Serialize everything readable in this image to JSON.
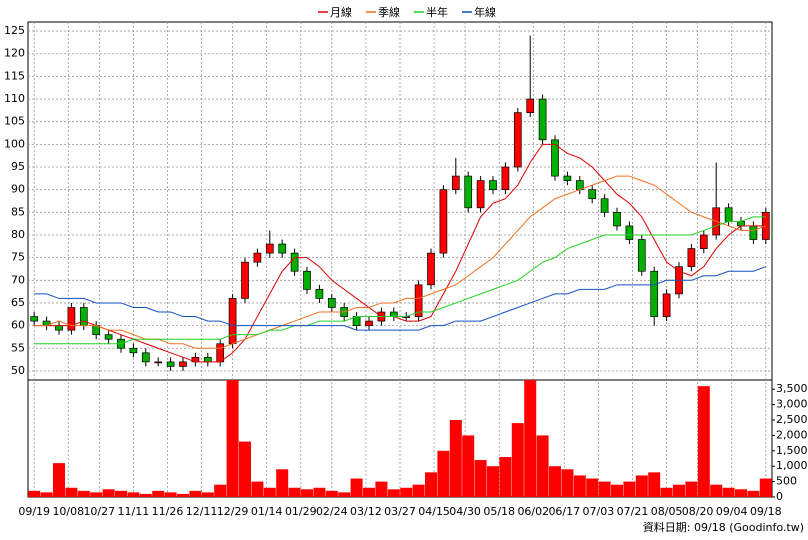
{
  "chart_data": {
    "type": "candlestick",
    "up_color": "#ff0000",
    "down_color": "#00b000",
    "volume_color": "#ff0000",
    "grid": true,
    "x": [
      0,
      4,
      8,
      12,
      16,
      20,
      24,
      28,
      32,
      36,
      40,
      44,
      48,
      52,
      56,
      60,
      64,
      68,
      72,
      76,
      80,
      84,
      88,
      92,
      96,
      100,
      104,
      108,
      112,
      116,
      120,
      124,
      128,
      132,
      136,
      140,
      144,
      148,
      152,
      156,
      160,
      164,
      168,
      172,
      176,
      180,
      184,
      188,
      192,
      196,
      200,
      204,
      208,
      212,
      216,
      220,
      224,
      228,
      232,
      236
    ],
    "open": [
      62,
      61,
      60,
      59,
      64,
      60,
      58,
      57,
      55,
      54,
      52,
      52,
      51,
      52,
      53,
      52,
      56,
      66,
      74,
      76,
      78,
      76,
      72,
      68,
      66,
      64,
      62,
      60,
      61,
      63,
      62,
      62,
      69,
      76,
      90,
      93,
      86,
      92,
      90,
      95,
      107,
      110,
      101,
      93,
      92,
      90,
      88,
      85,
      82,
      79,
      72,
      62,
      67,
      73,
      77,
      80,
      86,
      83,
      82,
      79
    ],
    "high": [
      63,
      62,
      61,
      65,
      65,
      61,
      59,
      58,
      56,
      55,
      53,
      53,
      53,
      54,
      54,
      57,
      67,
      75,
      77,
      81,
      79,
      77,
      73,
      69,
      67,
      65,
      63,
      62,
      64,
      64,
      63,
      70,
      77,
      91,
      97,
      94,
      93,
      93,
      96,
      108,
      124,
      111,
      102,
      94,
      93,
      91,
      89,
      86,
      83,
      80,
      73,
      68,
      74,
      78,
      81,
      96,
      87,
      84,
      83,
      86
    ],
    "low": [
      60,
      59,
      58,
      58,
      59,
      57,
      56,
      54,
      53,
      51,
      51,
      50,
      50,
      51,
      51,
      51,
      55,
      65,
      73,
      75,
      75,
      71,
      67,
      65,
      63,
      61,
      59,
      59,
      60,
      61,
      61,
      61,
      68,
      75,
      89,
      85,
      85,
      89,
      89,
      94,
      106,
      100,
      92,
      91,
      89,
      87,
      84,
      81,
      78,
      71,
      60,
      61,
      66,
      72,
      76,
      79,
      82,
      81,
      78,
      78
    ],
    "close": [
      61,
      60,
      59,
      64,
      60,
      58,
      57,
      55,
      54,
      52,
      52,
      51,
      52,
      53,
      52,
      56,
      66,
      74,
      76,
      78,
      76,
      72,
      68,
      66,
      64,
      62,
      60,
      61,
      63,
      62,
      62,
      69,
      76,
      90,
      93,
      86,
      92,
      90,
      95,
      107,
      110,
      101,
      93,
      92,
      90,
      88,
      85,
      82,
      79,
      72,
      62,
      67,
      73,
      77,
      80,
      86,
      83,
      82,
      79,
      85
    ],
    "volume": [
      200,
      150,
      1100,
      300,
      200,
      150,
      250,
      200,
      150,
      100,
      200,
      150,
      100,
      200,
      150,
      400,
      3800,
      1800,
      500,
      300,
      900,
      300,
      250,
      300,
      200,
      150,
      600,
      300,
      500,
      250,
      300,
      400,
      800,
      1500,
      2500,
      2000,
      1200,
      1000,
      1300,
      2400,
      3800,
      2000,
      1000,
      900,
      700,
      600,
      500,
      400,
      500,
      700,
      800,
      300,
      400,
      500,
      3600,
      400,
      300,
      250,
      200,
      600
    ],
    "series": [
      {
        "name": "月線",
        "color": "#e00000",
        "values": [
          60,
          60,
          60,
          60,
          61,
          60,
          59,
          58,
          57,
          56,
          55,
          54,
          53,
          52,
          52,
          52,
          54,
          57,
          62,
          67,
          72,
          75,
          75,
          73,
          70,
          68,
          66,
          64,
          62,
          62,
          61,
          61,
          62,
          67,
          72,
          78,
          84,
          87,
          88,
          91,
          96,
          100,
          100,
          98,
          97,
          95,
          92,
          89,
          87,
          84,
          79,
          74,
          72,
          71,
          73,
          77,
          80,
          82,
          82,
          82
        ]
      },
      {
        "name": "季線",
        "color": "#f07020",
        "values": [
          60,
          60,
          61,
          60,
          60,
          60,
          59,
          59,
          58,
          57,
          57,
          56,
          56,
          55,
          55,
          55,
          56,
          57,
          58,
          59,
          60,
          61,
          62,
          63,
          63,
          63,
          64,
          64,
          65,
          65,
          66,
          66,
          67,
          68,
          69,
          71,
          73,
          75,
          78,
          81,
          84,
          86,
          88,
          89,
          90,
          91,
          92,
          93,
          93,
          92,
          91,
          89,
          87,
          85,
          84,
          83,
          82,
          81,
          81,
          82
        ]
      },
      {
        "name": "半年",
        "color": "#20d020",
        "values": [
          56,
          56,
          56,
          56,
          56,
          56,
          56,
          56,
          57,
          57,
          57,
          57,
          57,
          57,
          57,
          57,
          58,
          58,
          58,
          59,
          59,
          60,
          60,
          61,
          61,
          61,
          62,
          62,
          62,
          62,
          62,
          63,
          63,
          64,
          65,
          66,
          67,
          68,
          69,
          70,
          72,
          74,
          75,
          77,
          78,
          79,
          80,
          80,
          80,
          80,
          80,
          80,
          80,
          80,
          81,
          82,
          83,
          83,
          84,
          84
        ]
      },
      {
        "name": "年線",
        "color": "#1050c0",
        "values": [
          67,
          67,
          66,
          66,
          66,
          65,
          65,
          65,
          64,
          64,
          63,
          63,
          62,
          62,
          61,
          61,
          60,
          60,
          60,
          60,
          60,
          60,
          60,
          60,
          60,
          60,
          59,
          59,
          59,
          59,
          59,
          59,
          60,
          60,
          61,
          61,
          61,
          62,
          63,
          64,
          65,
          66,
          67,
          67,
          68,
          68,
          68,
          69,
          69,
          69,
          69,
          70,
          70,
          70,
          71,
          71,
          72,
          72,
          72,
          73
        ]
      }
    ],
    "xlim": [
      -2,
      238
    ],
    "xticks": [
      {
        "value": 0,
        "label": "09/19"
      },
      {
        "value": 11,
        "label": "10/08"
      },
      {
        "value": 21,
        "label": "10/27"
      },
      {
        "value": 32,
        "label": "11/11"
      },
      {
        "value": 43,
        "label": "11/26"
      },
      {
        "value": 54,
        "label": "12/11"
      },
      {
        "value": 64,
        "label": "12/29"
      },
      {
        "value": 75,
        "label": "01/14"
      },
      {
        "value": 86,
        "label": "01/29"
      },
      {
        "value": 96,
        "label": "02/24"
      },
      {
        "value": 107,
        "label": "03/12"
      },
      {
        "value": 118,
        "label": "03/27"
      },
      {
        "value": 129,
        "label": "04/15"
      },
      {
        "value": 139,
        "label": "04/30"
      },
      {
        "value": 150,
        "label": "05/18"
      },
      {
        "value": 161,
        "label": "06/02"
      },
      {
        "value": 171,
        "label": "06/17"
      },
      {
        "value": 182,
        "label": "07/03"
      },
      {
        "value": 193,
        "label": "07/21"
      },
      {
        "value": 204,
        "label": "08/05"
      },
      {
        "value": 214,
        "label": "08/20"
      },
      {
        "value": 225,
        "label": "09/04"
      },
      {
        "value": 236,
        "label": "09/18"
      }
    ],
    "ylim": [
      48,
      127
    ],
    "yticks": [
      50,
      55,
      60,
      65,
      70,
      75,
      80,
      85,
      90,
      95,
      100,
      105,
      110,
      115,
      120,
      125
    ],
    "y2lim": [
      0,
      3800
    ],
    "y2ticks": [
      0,
      500,
      {
        "value": 1000,
        "label": "1,000"
      },
      {
        "value": 1500,
        "label": "1,500"
      },
      {
        "value": 2000,
        "label": "2,000"
      },
      {
        "value": 2500,
        "label": "2,500"
      },
      {
        "value": 3000,
        "label": "3,000"
      },
      {
        "value": 3500,
        "label": "3,500"
      }
    ],
    "footer": "資料日期: 09/18 (Goodinfo.tw)"
  }
}
